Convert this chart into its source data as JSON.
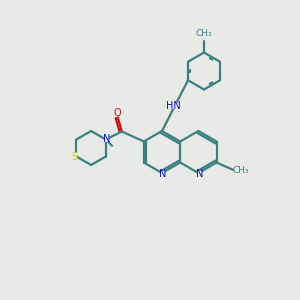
{
  "bg_color": "#e8eae8",
  "bond_color": "#3d8080",
  "N_color": "#1010cc",
  "O_color": "#cc1010",
  "S_color": "#cccc00",
  "figsize": [
    3.0,
    3.0
  ],
  "dpi": 100,
  "lw": 1.6
}
